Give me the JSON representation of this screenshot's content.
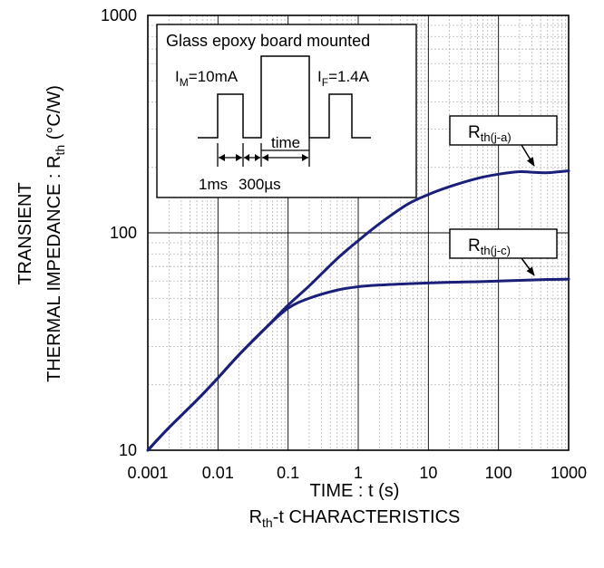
{
  "chart_data": {
    "type": "line",
    "x_scale": "log",
    "y_scale": "log",
    "xlim": [
      0.001,
      1000
    ],
    "ylim": [
      10,
      1000
    ],
    "x_ticks": [
      "0.001",
      "0.01",
      "0.1",
      "1",
      "10",
      "100",
      "1000"
    ],
    "y_ticks": [
      "10",
      "100",
      "1000"
    ],
    "grid": true,
    "xlabel": "TIME : t (s)",
    "ylabel_line1": "TRANSIENT",
    "ylabel_line2_main": "THERMAL IMPEDANCE : R",
    "ylabel_line2_sub": "th",
    "ylabel_line2_unit": " (°C/W)",
    "caption_main": "R",
    "caption_sub": "th",
    "caption_rest": "-t CHARACTERISTICS",
    "line_color": "#1a1f7a",
    "series": [
      {
        "label_main": "R",
        "label_sub": "th(j-a)",
        "x": [
          0.001,
          0.002,
          0.005,
          0.01,
          0.02,
          0.05,
          0.1,
          0.2,
          0.5,
          1,
          2,
          5,
          10,
          20,
          50,
          100,
          200,
          300,
          500,
          1000
        ],
        "y": [
          10,
          12.7,
          17,
          21.5,
          27.5,
          37,
          46.5,
          57,
          76,
          92,
          110,
          135,
          150,
          163,
          178,
          186,
          191,
          190,
          189,
          193
        ]
      },
      {
        "label_main": "R",
        "label_sub": "th(j-c)",
        "x": [
          0.001,
          0.002,
          0.005,
          0.01,
          0.02,
          0.05,
          0.1,
          0.2,
          0.5,
          1,
          2,
          5,
          10,
          20,
          50,
          100,
          200,
          500,
          1000
        ],
        "y": [
          10,
          12.7,
          17,
          21.5,
          27.5,
          37,
          45,
          50,
          54.5,
          56.5,
          57.5,
          58.3,
          58.8,
          59.2,
          59.6,
          60,
          60.4,
          61,
          61.2
        ]
      }
    ],
    "inset": {
      "title": "Glass epoxy board mounted",
      "im_main": "I",
      "im_sub": "M",
      "im_value": "=10mA",
      "if_main": "I",
      "if_sub": "F",
      "if_value": "=1.4A",
      "time_label": "time",
      "dur1_label": "1ms",
      "dur2_label": "300µs"
    }
  }
}
